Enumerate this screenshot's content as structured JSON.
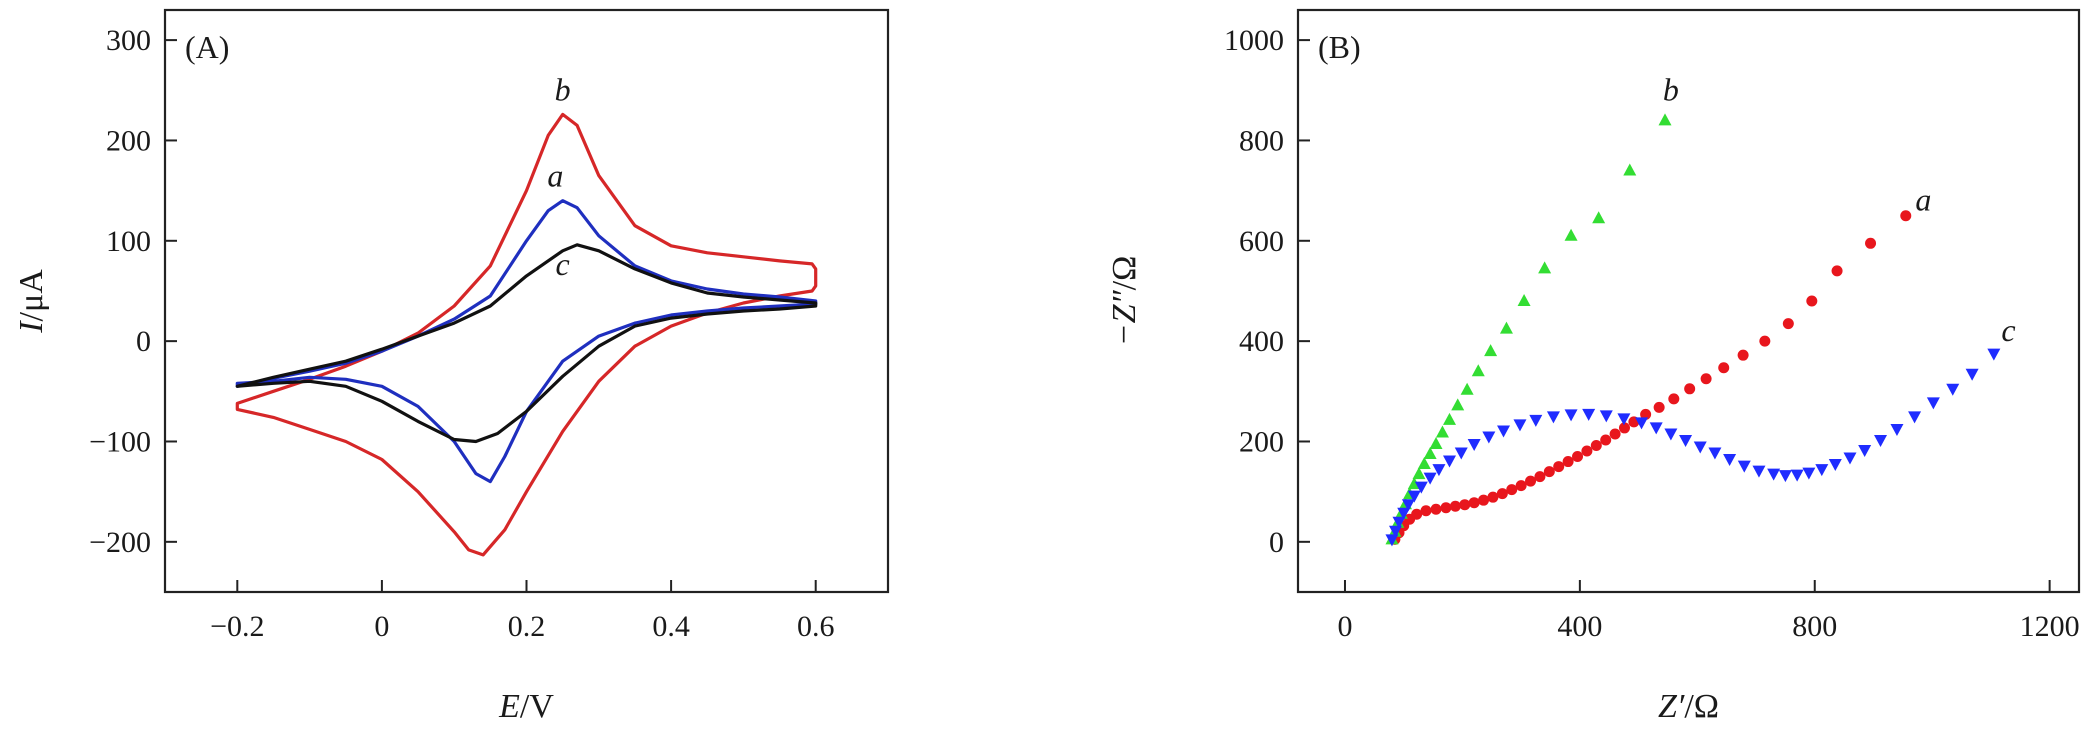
{
  "chart_data": [
    {
      "panel_label": "(A)",
      "type": "line",
      "xlabel": {
        "italic": "E",
        "rest": "/V"
      },
      "ylabel": {
        "italic": "I",
        "rest": "/μA"
      },
      "xlim": [
        -0.3,
        0.7
      ],
      "ylim": [
        -250,
        330
      ],
      "xticks": [
        -0.2,
        0,
        0.2,
        0.4,
        0.6
      ],
      "xtick_labels": [
        "−0.2",
        "0",
        "0.2",
        "0.4",
        "0.6"
      ],
      "yticks": [
        -200,
        -100,
        0,
        100,
        200,
        300
      ],
      "ytick_labels": [
        "−200",
        "−100",
        "0",
        "100",
        "200",
        "300"
      ],
      "grid": false,
      "series": [
        {
          "label": "b",
          "color": "#d62728",
          "label_pos": [
            0.25,
            240
          ],
          "points": [
            [
              -0.2,
              -62
            ],
            [
              -0.15,
              -50
            ],
            [
              -0.1,
              -38
            ],
            [
              -0.05,
              -25
            ],
            [
              0,
              -10
            ],
            [
              0.05,
              8
            ],
            [
              0.1,
              35
            ],
            [
              0.15,
              75
            ],
            [
              0.2,
              150
            ],
            [
              0.23,
              205
            ],
            [
              0.25,
              226
            ],
            [
              0.27,
              215
            ],
            [
              0.3,
              165
            ],
            [
              0.35,
              115
            ],
            [
              0.4,
              95
            ],
            [
              0.45,
              88
            ],
            [
              0.5,
              84
            ],
            [
              0.55,
              80
            ],
            [
              0.595,
              77
            ],
            [
              0.6,
              72
            ],
            [
              0.6,
              55
            ],
            [
              0.595,
              50
            ],
            [
              0.55,
              45
            ],
            [
              0.5,
              38
            ],
            [
              0.45,
              28
            ],
            [
              0.4,
              15
            ],
            [
              0.35,
              -5
            ],
            [
              0.3,
              -40
            ],
            [
              0.25,
              -90
            ],
            [
              0.2,
              -150
            ],
            [
              0.17,
              -188
            ],
            [
              0.14,
              -213
            ],
            [
              0.12,
              -208
            ],
            [
              0.1,
              -190
            ],
            [
              0.05,
              -150
            ],
            [
              0,
              -118
            ],
            [
              -0.05,
              -100
            ],
            [
              -0.1,
              -88
            ],
            [
              -0.15,
              -76
            ],
            [
              -0.2,
              -68
            ]
          ]
        },
        {
          "label": "a",
          "color": "#1f2fbf",
          "label_pos": [
            0.24,
            154
          ],
          "points": [
            [
              -0.2,
              -45
            ],
            [
              -0.15,
              -37
            ],
            [
              -0.1,
              -30
            ],
            [
              -0.05,
              -22
            ],
            [
              0,
              -10
            ],
            [
              0.05,
              5
            ],
            [
              0.1,
              22
            ],
            [
              0.15,
              45
            ],
            [
              0.2,
              100
            ],
            [
              0.23,
              130
            ],
            [
              0.25,
              140
            ],
            [
              0.27,
              133
            ],
            [
              0.3,
              105
            ],
            [
              0.35,
              75
            ],
            [
              0.4,
              60
            ],
            [
              0.45,
              52
            ],
            [
              0.5,
              47
            ],
            [
              0.55,
              44
            ],
            [
              0.6,
              40
            ],
            [
              0.6,
              37
            ],
            [
              0.55,
              35
            ],
            [
              0.5,
              33
            ],
            [
              0.45,
              30
            ],
            [
              0.4,
              26
            ],
            [
              0.35,
              18
            ],
            [
              0.3,
              5
            ],
            [
              0.25,
              -20
            ],
            [
              0.2,
              -70
            ],
            [
              0.17,
              -115
            ],
            [
              0.15,
              -140
            ],
            [
              0.13,
              -132
            ],
            [
              0.1,
              -100
            ],
            [
              0.05,
              -65
            ],
            [
              0,
              -45
            ],
            [
              -0.05,
              -38
            ],
            [
              -0.1,
              -36
            ],
            [
              -0.15,
              -40
            ],
            [
              -0.2,
              -42
            ]
          ]
        },
        {
          "label": "c",
          "color": "#111111",
          "label_pos": [
            0.25,
            66
          ],
          "points": [
            [
              -0.2,
              -45
            ],
            [
              -0.15,
              -36
            ],
            [
              -0.1,
              -28
            ],
            [
              -0.05,
              -20
            ],
            [
              0,
              -8
            ],
            [
              0.05,
              5
            ],
            [
              0.1,
              18
            ],
            [
              0.15,
              35
            ],
            [
              0.2,
              65
            ],
            [
              0.25,
              90
            ],
            [
              0.27,
              96
            ],
            [
              0.3,
              90
            ],
            [
              0.35,
              72
            ],
            [
              0.4,
              58
            ],
            [
              0.45,
              48
            ],
            [
              0.5,
              44
            ],
            [
              0.55,
              41
            ],
            [
              0.6,
              38
            ],
            [
              0.6,
              35
            ],
            [
              0.55,
              32
            ],
            [
              0.5,
              30
            ],
            [
              0.45,
              27
            ],
            [
              0.4,
              23
            ],
            [
              0.35,
              15
            ],
            [
              0.3,
              -5
            ],
            [
              0.25,
              -35
            ],
            [
              0.2,
              -70
            ],
            [
              0.16,
              -92
            ],
            [
              0.13,
              -100
            ],
            [
              0.1,
              -98
            ],
            [
              0.05,
              -80
            ],
            [
              0,
              -60
            ],
            [
              -0.05,
              -45
            ],
            [
              -0.1,
              -40
            ],
            [
              -0.15,
              -42
            ],
            [
              -0.2,
              -45
            ]
          ]
        }
      ]
    },
    {
      "panel_label": "(B)",
      "type": "scatter",
      "xlabel": {
        "italic": "Z′",
        "rest": "/Ω"
      },
      "ylabel": {
        "italic": "−Z″",
        "rest": "/Ω"
      },
      "xlim": [
        -80,
        1250
      ],
      "ylim": [
        -100,
        1060
      ],
      "xticks": [
        0,
        400,
        800,
        1200
      ],
      "xtick_labels": [
        "0",
        "400",
        "800",
        "1200"
      ],
      "yticks": [
        0,
        200,
        400,
        600,
        800,
        1000
      ],
      "ytick_labels": [
        "0",
        "200",
        "400",
        "600",
        "800",
        "1000"
      ],
      "grid": false,
      "series": [
        {
          "label": "a",
          "color": "#e8161d",
          "marker": "circle",
          "label_pos": [
            985,
            660
          ],
          "points": [
            [
              85,
              5
            ],
            [
              92,
              18
            ],
            [
              100,
              32
            ],
            [
              110,
              45
            ],
            [
              122,
              55
            ],
            [
              138,
              62
            ],
            [
              155,
              65
            ],
            [
              172,
              68
            ],
            [
              188,
              71
            ],
            [
              204,
              74
            ],
            [
              220,
              78
            ],
            [
              236,
              83
            ],
            [
              252,
              89
            ],
            [
              268,
              96
            ],
            [
              284,
              104
            ],
            [
              300,
              112
            ],
            [
              316,
              121
            ],
            [
              332,
              130
            ],
            [
              348,
              140
            ],
            [
              364,
              150
            ],
            [
              380,
              160
            ],
            [
              396,
              170
            ],
            [
              412,
              181
            ],
            [
              428,
              192
            ],
            [
              444,
              203
            ],
            [
              460,
              215
            ],
            [
              476,
              227
            ],
            [
              492,
              239
            ],
            [
              512,
              254
            ],
            [
              535,
              268
            ],
            [
              560,
              285
            ],
            [
              587,
              305
            ],
            [
              615,
              325
            ],
            [
              645,
              347
            ],
            [
              678,
              372
            ],
            [
              715,
              400
            ],
            [
              755,
              435
            ],
            [
              795,
              480
            ],
            [
              838,
              540
            ],
            [
              895,
              595
            ],
            [
              955,
              650
            ]
          ]
        },
        {
          "label": "b",
          "color": "#33dd33",
          "marker": "triangle-up",
          "label_pos": [
            555,
            880
          ],
          "points": [
            [
              80,
              5
            ],
            [
              85,
              20
            ],
            [
              90,
              38
            ],
            [
              96,
              56
            ],
            [
              103,
              75
            ],
            [
              110,
              95
            ],
            [
              118,
              115
            ],
            [
              126,
              135
            ],
            [
              135,
              155
            ],
            [
              145,
              175
            ],
            [
              155,
              195
            ],
            [
              166,
              218
            ],
            [
              178,
              243
            ],
            [
              192,
              272
            ],
            [
              208,
              303
            ],
            [
              227,
              340
            ],
            [
              248,
              380
            ],
            [
              275,
              425
            ],
            [
              305,
              480
            ],
            [
              340,
              545
            ],
            [
              385,
              610
            ],
            [
              432,
              645
            ],
            [
              485,
              740
            ],
            [
              545,
              840
            ]
          ]
        },
        {
          "label": "c",
          "color": "#1f2cff",
          "marker": "triangle-down",
          "label_pos": [
            1130,
            400
          ],
          "points": [
            [
              80,
              5
            ],
            [
              86,
              22
            ],
            [
              92,
              40
            ],
            [
              100,
              58
            ],
            [
              108,
              75
            ],
            [
              118,
              92
            ],
            [
              130,
              110
            ],
            [
              145,
              128
            ],
            [
              160,
              145
            ],
            [
              178,
              162
            ],
            [
              198,
              178
            ],
            [
              220,
              195
            ],
            [
              245,
              210
            ],
            [
              270,
              222
            ],
            [
              298,
              234
            ],
            [
              325,
              243
            ],
            [
              355,
              250
            ],
            [
              385,
              254
            ],
            [
              415,
              255
            ],
            [
              445,
              252
            ],
            [
              475,
              246
            ],
            [
              505,
              238
            ],
            [
              530,
              228
            ],
            [
              555,
              216
            ],
            [
              580,
              203
            ],
            [
              605,
              190
            ],
            [
              630,
              178
            ],
            [
              655,
              165
            ],
            [
              680,
              152
            ],
            [
              705,
              142
            ],
            [
              730,
              136
            ],
            [
              750,
              133
            ],
            [
              770,
              134
            ],
            [
              790,
              138
            ],
            [
              812,
              145
            ],
            [
              835,
              155
            ],
            [
              860,
              168
            ],
            [
              885,
              183
            ],
            [
              912,
              203
            ],
            [
              940,
              225
            ],
            [
              970,
              250
            ],
            [
              1002,
              278
            ],
            [
              1035,
              305
            ],
            [
              1068,
              335
            ],
            [
              1105,
              375
            ]
          ]
        }
      ]
    }
  ]
}
